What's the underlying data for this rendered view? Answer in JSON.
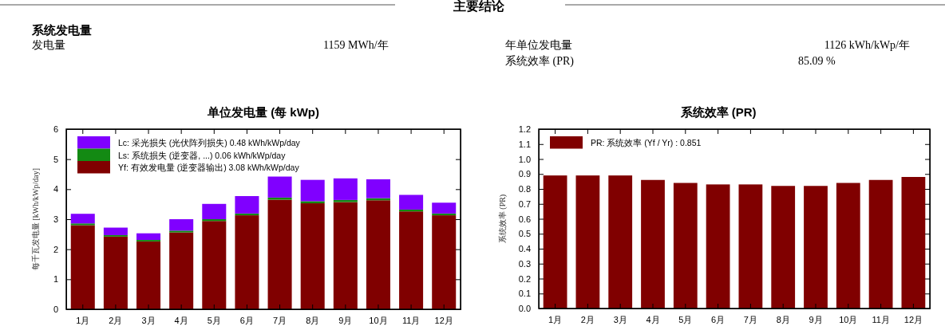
{
  "chart_data": [
    {
      "type": "other",
      "title": "主要结论",
      "subtitle": "系统发电量",
      "annotations": [
        "发电量",
        "1159 MWh/年",
        "年单位发电量",
        "1126 kWh/kWp/年",
        "系统效率 (PR)",
        "85.09 %"
      ]
    },
    {
      "type": "bar",
      "title": "单位发电量 (每 kWp)",
      "ylabel": "每千瓦发电量 [kWh/kWp/day]",
      "stacked": true,
      "legend": "top left",
      "grid": false,
      "categories": [
        "1月",
        "2月",
        "3月",
        "4月",
        "5月",
        "6月",
        "7月",
        "8月",
        "9月",
        "10月",
        "11月",
        "12月"
      ],
      "ylim": [
        0,
        6
      ],
      "yticks": [
        0,
        1,
        2,
        3,
        4,
        5,
        6
      ],
      "series": [
        {
          "name": "Yf: 有效发电量 (逆变器输出) 3.08 kWh/kWp/day",
          "color": "#800000",
          "values": [
            2.8,
            2.42,
            2.26,
            2.56,
            2.94,
            3.13,
            3.65,
            3.53,
            3.57,
            3.63,
            3.26,
            3.13
          ]
        },
        {
          "name": "Ls: 系统损失 (逆变器, ...) 0.06 kWh/kWp/day",
          "color": "#138a13",
          "values": [
            0.06,
            0.05,
            0.05,
            0.06,
            0.06,
            0.06,
            0.07,
            0.07,
            0.07,
            0.07,
            0.06,
            0.06
          ]
        },
        {
          "name": "Lc: 采光损失 (光伏阵列损失) 0.48 kWh/kWp/day",
          "color": "#8000ff",
          "values": [
            0.32,
            0.25,
            0.22,
            0.38,
            0.51,
            0.58,
            0.7,
            0.71,
            0.72,
            0.63,
            0.49,
            0.36
          ]
        }
      ]
    },
    {
      "type": "bar",
      "title": "系统效率 (PR)",
      "ylabel": "系统效率 (PR)",
      "legend": "top left",
      "grid": false,
      "categories": [
        "1月",
        "2月",
        "3月",
        "4月",
        "5月",
        "6月",
        "7月",
        "8月",
        "9月",
        "10月",
        "11月",
        "12月"
      ],
      "ylim": [
        0,
        1.2
      ],
      "yticks": [
        {
          "value": 0,
          "label": "0.0"
        },
        0.1,
        0.2,
        0.3,
        0.4,
        0.5,
        0.6,
        0.7,
        0.8,
        0.9,
        {
          "value": 1,
          "label": "1.0"
        },
        1.1,
        1.2
      ],
      "series": [
        {
          "name": "PR: 系统效率 (Yf / Yr) : 0.851",
          "color": "#800000",
          "values": [
            0.89,
            0.89,
            0.89,
            0.86,
            0.84,
            0.83,
            0.83,
            0.82,
            0.82,
            0.84,
            0.86,
            0.88
          ]
        }
      ]
    }
  ]
}
